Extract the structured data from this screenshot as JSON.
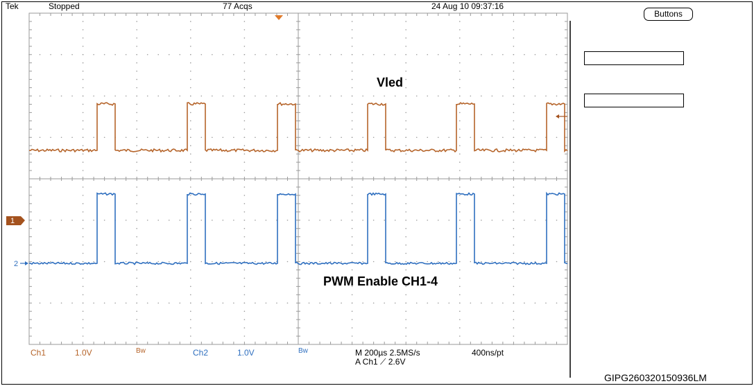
{
  "header": {
    "brand": "Tek",
    "status": "Stopped",
    "acqs": "77 Acqs",
    "datetime": "24 Aug 10 09:37:16"
  },
  "side_panel": {
    "buttons_label": "Buttons"
  },
  "traces": {
    "ch1_label": "Vled",
    "ch2_label": "PWM Enable CH1-4",
    "ch1_marker": "1",
    "ch2_marker": "2",
    "ch1_color": "#b5642a",
    "ch2_color": "#2f6fbf"
  },
  "readout": {
    "ch1_name": "Ch1",
    "ch1_scale": "1.0V",
    "ch1_bw": "Bw",
    "ch2_name": "Ch2",
    "ch2_scale": "1.0V",
    "ch2_bw": "Bw",
    "timebase": "M 200µs 2.5MS/s",
    "record": "400ns/pt",
    "trigger": "A  Ch1  ⟋  2.6V"
  },
  "footer": {
    "image_code": "GIPG260320150936LM"
  }
}
